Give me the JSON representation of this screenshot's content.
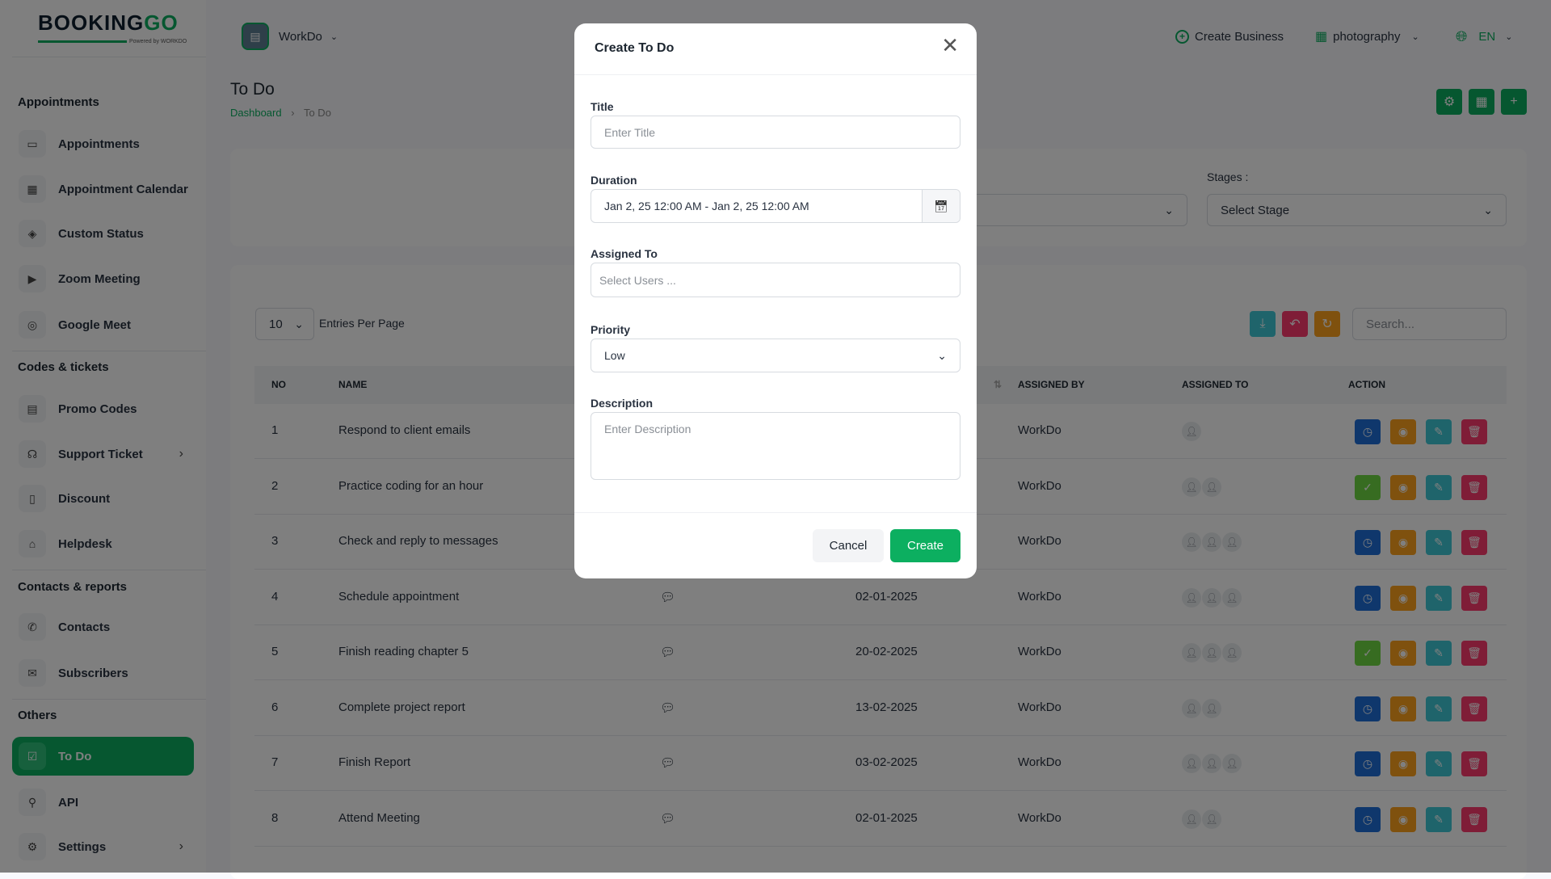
{
  "brand": {
    "logo_text_a": "BOOKING",
    "logo_text_b": "GO",
    "powered": "Powered by WORKDO",
    "color": "#0CAF60"
  },
  "header": {
    "workspace": "WorkDo",
    "create_business": "Create Business",
    "business": "photography",
    "language": "EN"
  },
  "sidebar": {
    "sections": [
      {
        "title": "Appointments",
        "items": [
          {
            "label": "Appointments",
            "icon": "calendar-card-icon"
          },
          {
            "label": "Appointment Calendar",
            "icon": "calendar-icon"
          },
          {
            "label": "Custom Status",
            "icon": "tag-icon"
          },
          {
            "label": "Zoom Meeting",
            "icon": "video-icon"
          },
          {
            "label": "Google Meet",
            "icon": "meet-icon"
          }
        ]
      },
      {
        "title": "Codes & tickets",
        "items": [
          {
            "label": "Promo Codes",
            "icon": "ticket-icon"
          },
          {
            "label": "Support Ticket",
            "icon": "headset-icon",
            "submenu": true
          },
          {
            "label": "Discount",
            "icon": "bookmark-icon"
          },
          {
            "label": "Helpdesk",
            "icon": "home-icon"
          }
        ]
      },
      {
        "title": "Contacts & reports",
        "items": [
          {
            "label": "Contacts",
            "icon": "phone-icon"
          },
          {
            "label": "Subscribers",
            "icon": "mail-icon"
          }
        ]
      },
      {
        "title": "Others",
        "items": [
          {
            "label": "To Do",
            "icon": "checklist-icon",
            "active": true
          },
          {
            "label": "API",
            "icon": "api-icon"
          },
          {
            "label": "Settings",
            "icon": "gear-icon",
            "submenu": true
          }
        ]
      }
    ]
  },
  "page": {
    "title": "To Do",
    "breadcrumb": [
      "Dashboard",
      "To Do"
    ]
  },
  "filters": {
    "stages_label": "Stages :",
    "stages_placeholder": "Select Stage"
  },
  "table": {
    "entries_value": "10",
    "entries_label": "Entries Per Page",
    "search_placeholder": "Search...",
    "headers": {
      "no": "NO",
      "name": "NAME",
      "assigned_by": "ASSIGNED BY",
      "assigned_to": "ASSIGNED TO",
      "action": "ACTION"
    },
    "rows": [
      {
        "no": "1",
        "name": "Respond to client emails",
        "date": "",
        "assigned_by": "WorkDo",
        "assignees": 1,
        "status": "pending"
      },
      {
        "no": "2",
        "name": "Practice coding for an hour",
        "date": "",
        "assigned_by": "WorkDo",
        "assignees": 2,
        "status": "done"
      },
      {
        "no": "3",
        "name": "Check and reply to messages",
        "date": "",
        "assigned_by": "WorkDo",
        "assignees": 3,
        "status": "pending"
      },
      {
        "no": "4",
        "name": "Schedule appointment",
        "date": "02-01-2025",
        "assigned_by": "WorkDo",
        "assignees": 3,
        "status": "pending"
      },
      {
        "no": "5",
        "name": "Finish reading chapter 5",
        "date": "20-02-2025",
        "assigned_by": "WorkDo",
        "assignees": 3,
        "status": "done"
      },
      {
        "no": "6",
        "name": "Complete project report",
        "date": "13-02-2025",
        "assigned_by": "WorkDo",
        "assignees": 2,
        "status": "pending"
      },
      {
        "no": "7",
        "name": "Finish Report",
        "date": "03-02-2025",
        "assigned_by": "WorkDo",
        "assignees": 3,
        "status": "pending"
      },
      {
        "no": "8",
        "name": "Attend Meeting",
        "date": "02-01-2025",
        "assigned_by": "WorkDo",
        "assignees": 2,
        "status": "pending"
      }
    ]
  },
  "colors": {
    "primary": "#0CAF60",
    "clock": "#1E6FD9",
    "check": "#6FD943",
    "view": "#FFA21D",
    "edit": "#3EC9D6",
    "delete": "#FF3A6E"
  },
  "modal": {
    "title": "Create To Do",
    "title_label": "Title",
    "title_placeholder": "Enter Title",
    "duration_label": "Duration",
    "duration_value": "Jan 2, 25 12:00 AM - Jan 2, 25 12:00 AM",
    "assigned_label": "Assigned To",
    "assigned_placeholder": "Select Users ...",
    "priority_label": "Priority",
    "priority_value": "Low",
    "description_label": "Description",
    "description_placeholder": "Enter Description",
    "cancel": "Cancel",
    "create": "Create"
  }
}
